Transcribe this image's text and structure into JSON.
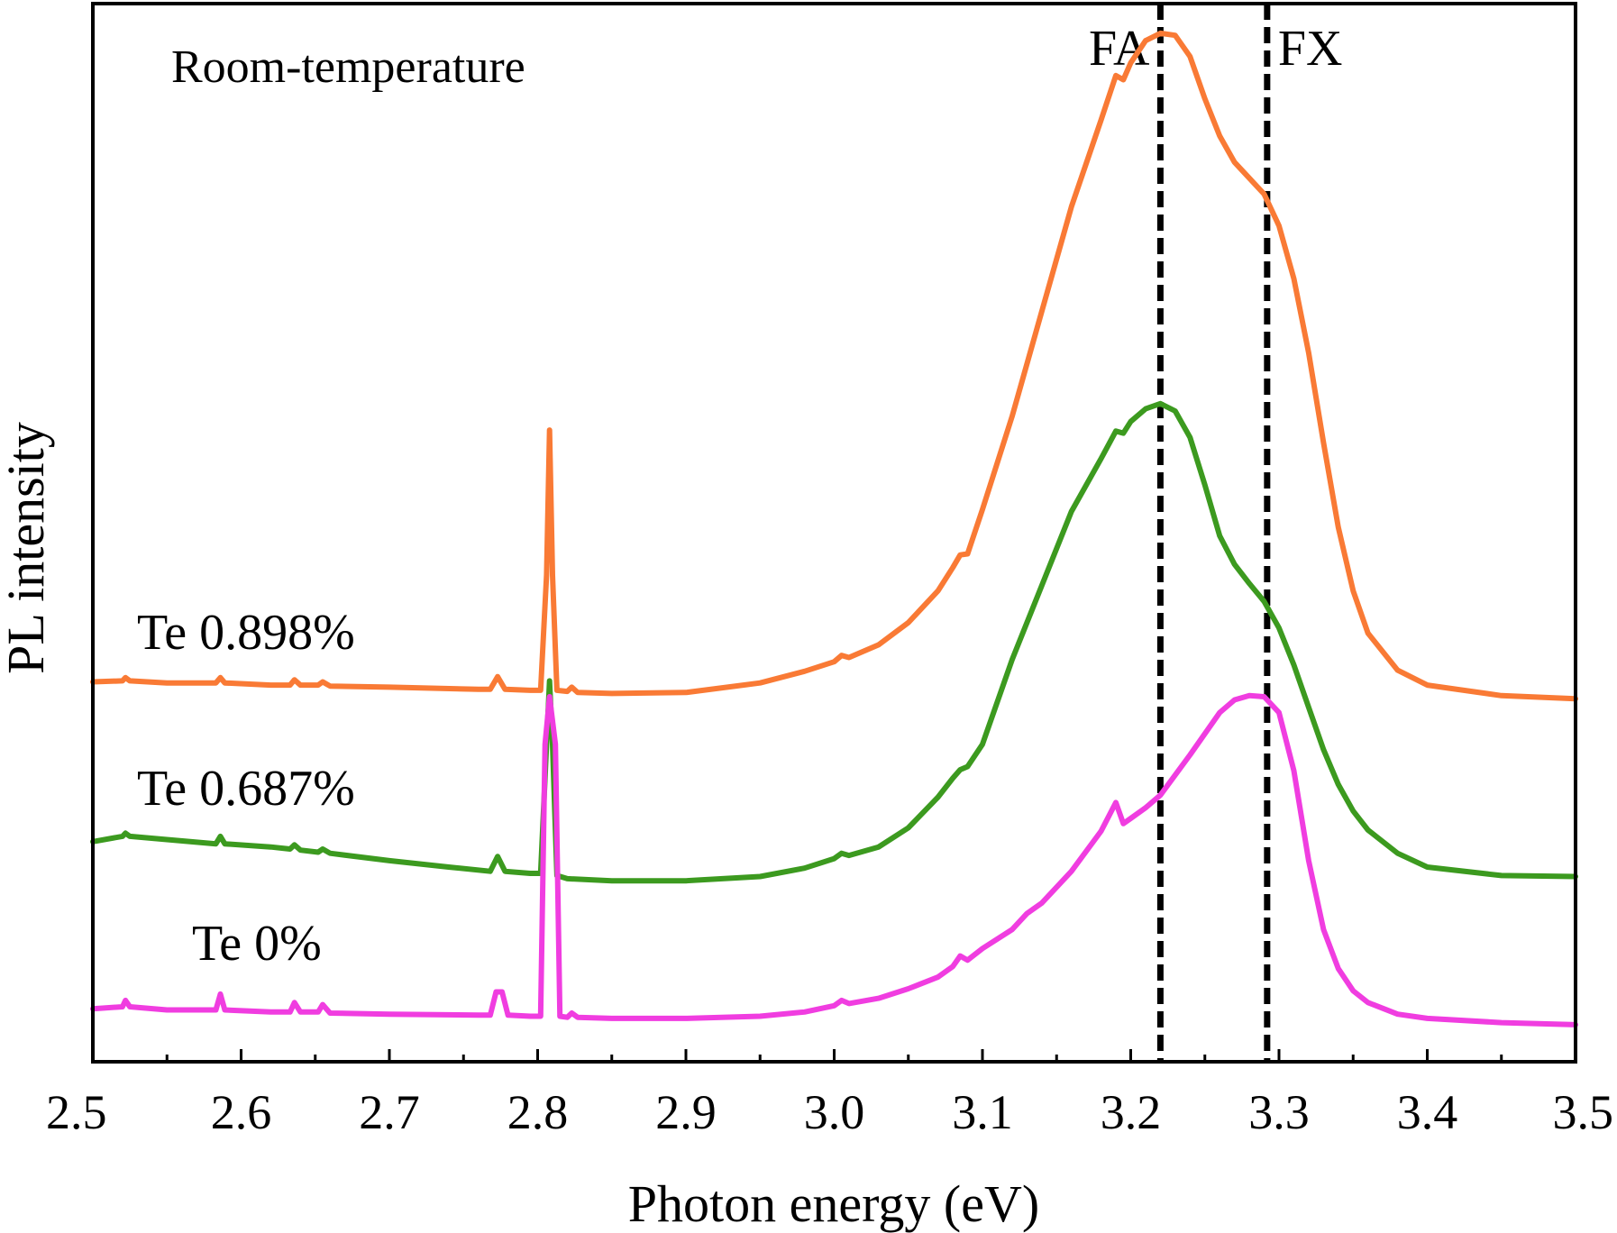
{
  "chart_data": {
    "type": "line",
    "annotation": "Room-temperature",
    "xlabel": "Photon energy (eV)",
    "ylabel": "PL intensity",
    "xlim": [
      2.5,
      3.5
    ],
    "ylim": [
      0,
      1.0
    ],
    "x_ticks": [
      "2.5",
      "2.6",
      "2.7",
      "2.8",
      "2.9",
      "3.0",
      "3.1",
      "3.2",
      "3.3",
      "3.4",
      "3.5"
    ],
    "y_ticks_shown": false,
    "grid": false,
    "reference_lines": [
      {
        "label": "FA",
        "x": 3.22
      },
      {
        "label": "FX",
        "x": 3.292
      }
    ],
    "series": [
      {
        "name": "Te 0.898%",
        "color": "#f97a35",
        "points": [
          [
            2.5,
            0.359
          ],
          [
            2.52,
            0.36
          ],
          [
            2.522,
            0.363
          ],
          [
            2.525,
            0.36
          ],
          [
            2.55,
            0.358
          ],
          [
            2.583,
            0.358
          ],
          [
            2.586,
            0.363
          ],
          [
            2.589,
            0.358
          ],
          [
            2.62,
            0.356
          ],
          [
            2.633,
            0.356
          ],
          [
            2.636,
            0.361
          ],
          [
            2.64,
            0.356
          ],
          [
            2.652,
            0.356
          ],
          [
            2.655,
            0.359
          ],
          [
            2.66,
            0.355
          ],
          [
            2.7,
            0.354
          ],
          [
            2.76,
            0.352
          ],
          [
            2.768,
            0.352
          ],
          [
            2.773,
            0.364
          ],
          [
            2.778,
            0.352
          ],
          [
            2.795,
            0.351
          ],
          [
            2.802,
            0.351
          ],
          [
            2.806,
            0.46
          ],
          [
            2.808,
            0.597
          ],
          [
            2.81,
            0.46
          ],
          [
            2.813,
            0.351
          ],
          [
            2.82,
            0.35
          ],
          [
            2.823,
            0.354
          ],
          [
            2.827,
            0.349
          ],
          [
            2.85,
            0.348
          ],
          [
            2.9,
            0.349
          ],
          [
            2.95,
            0.358
          ],
          [
            2.98,
            0.369
          ],
          [
            3.0,
            0.378
          ],
          [
            3.005,
            0.384
          ],
          [
            3.01,
            0.382
          ],
          [
            3.03,
            0.394
          ],
          [
            3.05,
            0.415
          ],
          [
            3.07,
            0.445
          ],
          [
            3.08,
            0.467
          ],
          [
            3.085,
            0.479
          ],
          [
            3.09,
            0.48
          ],
          [
            3.1,
            0.522
          ],
          [
            3.12,
            0.61
          ],
          [
            3.14,
            0.709
          ],
          [
            3.16,
            0.808
          ],
          [
            3.18,
            0.89
          ],
          [
            3.19,
            0.932
          ],
          [
            3.195,
            0.928
          ],
          [
            3.2,
            0.944
          ],
          [
            3.21,
            0.965
          ],
          [
            3.22,
            0.972
          ],
          [
            3.23,
            0.97
          ],
          [
            3.24,
            0.95
          ],
          [
            3.25,
            0.91
          ],
          [
            3.26,
            0.875
          ],
          [
            3.27,
            0.85
          ],
          [
            3.28,
            0.835
          ],
          [
            3.29,
            0.82
          ],
          [
            3.3,
            0.79
          ],
          [
            3.31,
            0.74
          ],
          [
            3.32,
            0.67
          ],
          [
            3.33,
            0.585
          ],
          [
            3.34,
            0.505
          ],
          [
            3.35,
            0.445
          ],
          [
            3.36,
            0.405
          ],
          [
            3.38,
            0.37
          ],
          [
            3.4,
            0.356
          ],
          [
            3.45,
            0.346
          ],
          [
            3.5,
            0.343
          ]
        ]
      },
      {
        "name": "Te 0.687%",
        "color": "#3c9a1f",
        "points": [
          [
            2.5,
            0.208
          ],
          [
            2.52,
            0.213
          ],
          [
            2.522,
            0.216
          ],
          [
            2.525,
            0.213
          ],
          [
            2.55,
            0.21
          ],
          [
            2.583,
            0.206
          ],
          [
            2.586,
            0.213
          ],
          [
            2.589,
            0.206
          ],
          [
            2.62,
            0.203
          ],
          [
            2.633,
            0.201
          ],
          [
            2.636,
            0.205
          ],
          [
            2.64,
            0.2
          ],
          [
            2.652,
            0.198
          ],
          [
            2.655,
            0.201
          ],
          [
            2.66,
            0.197
          ],
          [
            2.7,
            0.19
          ],
          [
            2.74,
            0.184
          ],
          [
            2.768,
            0.18
          ],
          [
            2.773,
            0.194
          ],
          [
            2.778,
            0.18
          ],
          [
            2.795,
            0.178
          ],
          [
            2.802,
            0.178
          ],
          [
            2.806,
            0.3
          ],
          [
            2.808,
            0.36
          ],
          [
            2.81,
            0.3
          ],
          [
            2.813,
            0.176
          ],
          [
            2.82,
            0.173
          ],
          [
            2.85,
            0.171
          ],
          [
            2.9,
            0.171
          ],
          [
            2.95,
            0.175
          ],
          [
            2.98,
            0.183
          ],
          [
            3.0,
            0.192
          ],
          [
            3.005,
            0.197
          ],
          [
            3.01,
            0.195
          ],
          [
            3.03,
            0.203
          ],
          [
            3.05,
            0.221
          ],
          [
            3.07,
            0.25
          ],
          [
            3.08,
            0.268
          ],
          [
            3.085,
            0.276
          ],
          [
            3.09,
            0.279
          ],
          [
            3.1,
            0.3
          ],
          [
            3.12,
            0.38
          ],
          [
            3.14,
            0.45
          ],
          [
            3.16,
            0.52
          ],
          [
            3.18,
            0.57
          ],
          [
            3.19,
            0.596
          ],
          [
            3.195,
            0.594
          ],
          [
            3.2,
            0.605
          ],
          [
            3.21,
            0.617
          ],
          [
            3.22,
            0.622
          ],
          [
            3.23,
            0.615
          ],
          [
            3.24,
            0.59
          ],
          [
            3.25,
            0.545
          ],
          [
            3.26,
            0.497
          ],
          [
            3.27,
            0.47
          ],
          [
            3.28,
            0.452
          ],
          [
            3.29,
            0.435
          ],
          [
            3.3,
            0.41
          ],
          [
            3.31,
            0.375
          ],
          [
            3.32,
            0.335
          ],
          [
            3.33,
            0.295
          ],
          [
            3.34,
            0.262
          ],
          [
            3.35,
            0.237
          ],
          [
            3.36,
            0.219
          ],
          [
            3.38,
            0.197
          ],
          [
            3.4,
            0.184
          ],
          [
            3.45,
            0.176
          ],
          [
            3.5,
            0.175
          ]
        ]
      },
      {
        "name": "Te 0%",
        "color": "#f03de0",
        "points": [
          [
            2.5,
            0.05
          ],
          [
            2.52,
            0.052
          ],
          [
            2.522,
            0.058
          ],
          [
            2.525,
            0.052
          ],
          [
            2.55,
            0.049
          ],
          [
            2.583,
            0.049
          ],
          [
            2.586,
            0.064
          ],
          [
            2.589,
            0.049
          ],
          [
            2.62,
            0.047
          ],
          [
            2.633,
            0.047
          ],
          [
            2.636,
            0.056
          ],
          [
            2.64,
            0.047
          ],
          [
            2.652,
            0.047
          ],
          [
            2.655,
            0.054
          ],
          [
            2.66,
            0.046
          ],
          [
            2.7,
            0.045
          ],
          [
            2.76,
            0.044
          ],
          [
            2.768,
            0.044
          ],
          [
            2.772,
            0.066
          ],
          [
            2.776,
            0.066
          ],
          [
            2.78,
            0.044
          ],
          [
            2.795,
            0.043
          ],
          [
            2.802,
            0.043
          ],
          [
            2.805,
            0.3
          ],
          [
            2.808,
            0.345
          ],
          [
            2.812,
            0.3
          ],
          [
            2.815,
            0.043
          ],
          [
            2.82,
            0.042
          ],
          [
            2.823,
            0.046
          ],
          [
            2.827,
            0.042
          ],
          [
            2.85,
            0.041
          ],
          [
            2.9,
            0.041
          ],
          [
            2.95,
            0.043
          ],
          [
            2.98,
            0.047
          ],
          [
            3.0,
            0.053
          ],
          [
            3.005,
            0.058
          ],
          [
            3.01,
            0.055
          ],
          [
            3.03,
            0.06
          ],
          [
            3.05,
            0.069
          ],
          [
            3.07,
            0.08
          ],
          [
            3.08,
            0.09
          ],
          [
            3.085,
            0.1
          ],
          [
            3.09,
            0.096
          ],
          [
            3.1,
            0.107
          ],
          [
            3.12,
            0.125
          ],
          [
            3.13,
            0.14
          ],
          [
            3.14,
            0.15
          ],
          [
            3.16,
            0.18
          ],
          [
            3.18,
            0.218
          ],
          [
            3.19,
            0.245
          ],
          [
            3.195,
            0.225
          ],
          [
            3.2,
            0.23
          ],
          [
            3.21,
            0.24
          ],
          [
            3.22,
            0.252
          ],
          [
            3.24,
            0.29
          ],
          [
            3.26,
            0.33
          ],
          [
            3.27,
            0.342
          ],
          [
            3.28,
            0.346
          ],
          [
            3.29,
            0.345
          ],
          [
            3.3,
            0.33
          ],
          [
            3.31,
            0.275
          ],
          [
            3.32,
            0.19
          ],
          [
            3.33,
            0.125
          ],
          [
            3.34,
            0.088
          ],
          [
            3.35,
            0.067
          ],
          [
            3.36,
            0.056
          ],
          [
            3.38,
            0.045
          ],
          [
            3.4,
            0.041
          ],
          [
            3.45,
            0.037
          ],
          [
            3.5,
            0.035
          ]
        ]
      }
    ]
  }
}
